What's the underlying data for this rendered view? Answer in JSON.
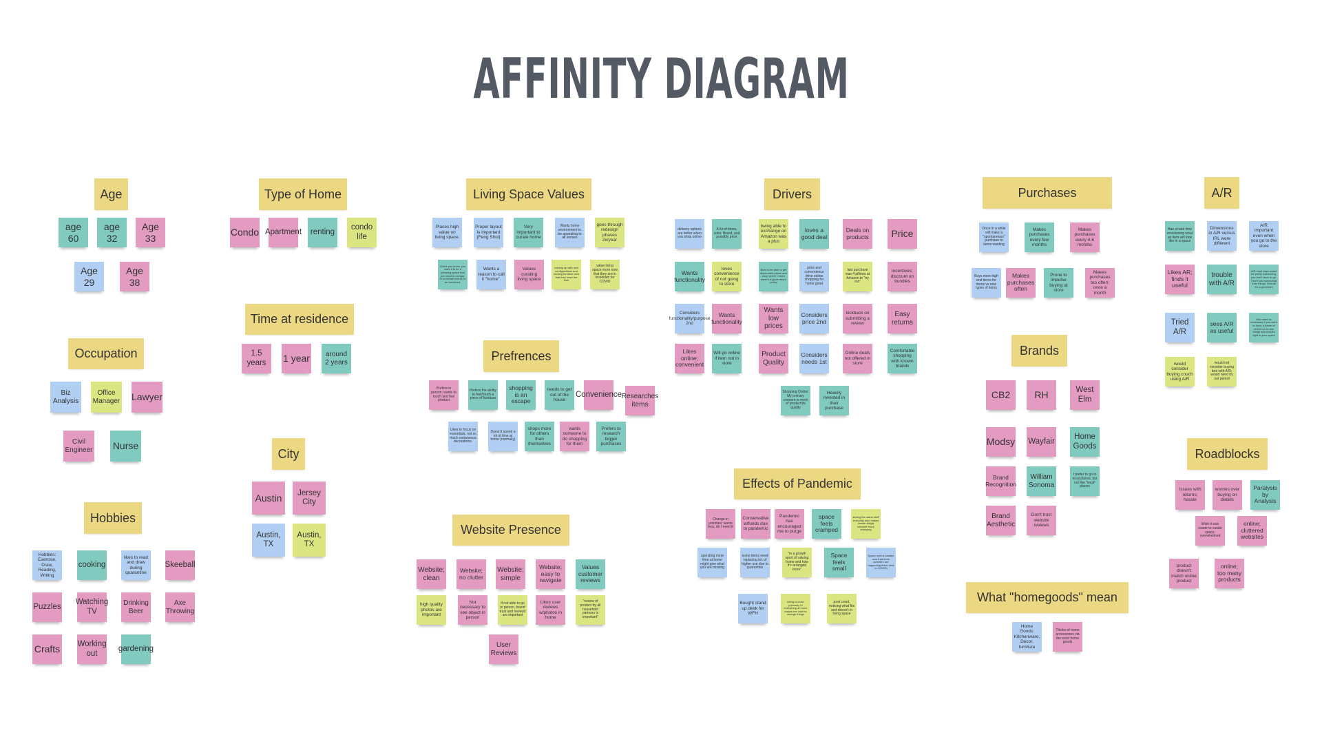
{
  "title": "AFFINITY DIAGRAM",
  "palette": {
    "header": "#ecd782",
    "pink": "#e49bc2",
    "teal": "#80cac0",
    "blue": "#b0cff3",
    "green": "#dbe683",
    "title": "#545a64"
  },
  "groups": [
    {
      "title": "Age",
      "notes": [
        {
          "text": "age 60",
          "color": "teal"
        },
        {
          "text": "age 32",
          "color": "teal"
        },
        {
          "text": "Age 33",
          "color": "pink"
        },
        {
          "text": "Age 29",
          "color": "blue"
        },
        {
          "text": "Age 38",
          "color": "pink"
        }
      ]
    },
    {
      "title": "Type of Home",
      "notes": [
        {
          "text": "Condo",
          "color": "pink"
        },
        {
          "text": "Apartment",
          "color": "pink"
        },
        {
          "text": "renting",
          "color": "teal"
        },
        {
          "text": "condo life",
          "color": "green"
        }
      ]
    },
    {
      "title": "Time at residence",
      "notes": [
        {
          "text": "1.5 years",
          "color": "pink"
        },
        {
          "text": "1 year",
          "color": "pink"
        },
        {
          "text": "around 2 years",
          "color": "teal"
        }
      ]
    },
    {
      "title": "Occupation",
      "notes": [
        {
          "text": "Biz Analysis",
          "color": "blue"
        },
        {
          "text": "Office Manager",
          "color": "green"
        },
        {
          "text": "Lawyer",
          "color": "pink"
        },
        {
          "text": "Civil Engineer",
          "color": "pink"
        },
        {
          "text": "Nurse",
          "color": "teal"
        }
      ]
    },
    {
      "title": "City",
      "notes": [
        {
          "text": "Austin",
          "color": "pink"
        },
        {
          "text": "Jersey City",
          "color": "pink"
        },
        {
          "text": "Austin, TX",
          "color": "blue"
        },
        {
          "text": "Austin, TX",
          "color": "green"
        }
      ]
    },
    {
      "title": "Hobbies",
      "notes": [
        {
          "text": "Hobbies: Exercise, Draw, Reading, Writing",
          "color": "blue"
        },
        {
          "text": "cooking",
          "color": "teal"
        },
        {
          "text": "likes to read and draw during quarantine",
          "color": "blue"
        },
        {
          "text": "Skeeball",
          "color": "pink"
        },
        {
          "text": "Puzzles",
          "color": "pink"
        },
        {
          "text": "Watching TV",
          "color": "pink"
        },
        {
          "text": "Drinking Beer",
          "color": "pink"
        },
        {
          "text": "Axe Throwing",
          "color": "pink"
        },
        {
          "text": "Crafts",
          "color": "pink"
        },
        {
          "text": "Working out",
          "color": "pink"
        },
        {
          "text": "gardening",
          "color": "teal"
        }
      ]
    },
    {
      "title": "Living Space Values",
      "notes": [
        {
          "text": "Places high value on living space.",
          "color": "blue"
        },
        {
          "text": "Proper layout is important (Feng Shui)",
          "color": "blue"
        },
        {
          "text": "Very important to curate home",
          "color": "teal"
        },
        {
          "text": "Wants home environment to be appealing to all senses",
          "color": "blue"
        },
        {
          "text": "goes through redesign phases 2x/year",
          "color": "green"
        },
        {
          "text": "I think you know, you want it to be a pleasing space that you want to occupy. To a certain extent, to be furnished.",
          "color": "teal"
        },
        {
          "text": "Wants a reason to call it \"home\".",
          "color": "blue"
        },
        {
          "text": "Values curating living space",
          "color": "pink"
        },
        {
          "text": "coming up with new configurations and moving furniture now that they have the time",
          "color": "green"
        },
        {
          "text": "value living space more now that they are in lockdown for COVID",
          "color": "green"
        }
      ]
    },
    {
      "title": "Prefrences",
      "notes": [
        {
          "text": "Prefers in person; wants to touch and feel product",
          "color": "pink"
        },
        {
          "text": "Prefers the ability to feel/touch a piece of furniture",
          "color": "teal"
        },
        {
          "text": "shopping is an escape",
          "color": "teal"
        },
        {
          "text": "needs to get out of the house",
          "color": "teal"
        },
        {
          "text": "Convenience",
          "color": "pink"
        },
        {
          "text": "Researches items",
          "color": "pink"
        },
        {
          "text": "Likes to focus on essentials, not so much extraneous decorations.",
          "color": "blue"
        },
        {
          "text": "Doesn't spend a lot of time at home (normally)",
          "color": "blue"
        },
        {
          "text": "shops more for others than themselves",
          "color": "teal"
        },
        {
          "text": "wants someone to do shopping for them",
          "color": "pink"
        },
        {
          "text": "Prefers to research bigger purchases",
          "color": "teal"
        }
      ]
    },
    {
      "title": "Website Presence",
      "notes": [
        {
          "text": "Website; clean",
          "color": "pink"
        },
        {
          "text": "Website; no clutter",
          "color": "pink"
        },
        {
          "text": "Website; simple",
          "color": "pink"
        },
        {
          "text": "Website; easy to navigate",
          "color": "pink"
        },
        {
          "text": "Values customer reviews",
          "color": "teal"
        },
        {
          "text": "high quality photos are important",
          "color": "green"
        },
        {
          "text": "Not necessary to see object in person",
          "color": "pink"
        },
        {
          "text": "If not able to go in person, brand trust and reviews are important",
          "color": "green"
        },
        {
          "text": "Likes user reviews w/photos in home",
          "color": "pink"
        },
        {
          "text": "\"review of product by all household partners is important\"",
          "color": "green"
        },
        {
          "text": "User Reviews",
          "color": "pink"
        }
      ]
    },
    {
      "title": "Drivers",
      "notes": [
        {
          "text": "delivery options are better when you shop online",
          "color": "blue"
        },
        {
          "text": "A lot of times, color, Brand, and possibly price",
          "color": "teal"
        },
        {
          "text": "being able to exchange on Amazon was a plus",
          "color": "green"
        },
        {
          "text": "loves a good deal",
          "color": "teal"
        },
        {
          "text": "Deals on products",
          "color": "pink"
        },
        {
          "text": "Price",
          "color": "pink"
        },
        {
          "text": "Wants functionality",
          "color": "teal"
        },
        {
          "text": "loves convenience of not going to store",
          "color": "green"
        },
        {
          "text": "likes to be able to get discounted prices and shop where I know there's a good return policy",
          "color": "teal"
        },
        {
          "text": "price and convenience drive online shopping for home good",
          "color": "blue"
        },
        {
          "text": "last purchase was 4 pillows at Amazon to \"try out\"",
          "color": "green"
        },
        {
          "text": "incentives; discount on bundles",
          "color": "pink"
        },
        {
          "text": "Considers functionality/purpose 2nd",
          "color": "blue"
        },
        {
          "text": "Wants functionality",
          "color": "pink"
        },
        {
          "text": "Wants low prices",
          "color": "pink"
        },
        {
          "text": "Considers price 2nd",
          "color": "blue"
        },
        {
          "text": "kickback on submitting a review",
          "color": "pink"
        },
        {
          "text": "Easy returns",
          "color": "pink"
        },
        {
          "text": "Likes online; convenient",
          "color": "pink"
        },
        {
          "text": "Will go online if item not in store",
          "color": "teal"
        },
        {
          "text": "Product Quality",
          "color": "pink"
        },
        {
          "text": "Considers needs 1st",
          "color": "blue"
        },
        {
          "text": "Online deals not offered in store",
          "color": "pink"
        },
        {
          "text": "Comfortable shopping with known brands",
          "color": "teal"
        },
        {
          "text": "Shopping Online: My primary concern is more of product/its quality",
          "color": "teal"
        },
        {
          "text": "Heavily invested in their purchase",
          "color": "teal"
        }
      ]
    },
    {
      "title": "Effects of Pandemic",
      "notes": [
        {
          "text": "Change in priorities; wants less; do I need it",
          "color": "pink"
        },
        {
          "text": "Conservative w/funds due to pandemic",
          "color": "pink"
        },
        {
          "text": "Pandemic has encouraged me to purge",
          "color": "pink"
        },
        {
          "text": "space feels cramped",
          "color": "teal"
        },
        {
          "text": "seeing the same stuff everyday also makes certain things become more annoying",
          "color": "green"
        },
        {
          "text": "spending more time at home might give what you are missing",
          "color": "blue"
        },
        {
          "text": "some items need replacing b/c of higher use due to quarantine",
          "color": "blue"
        },
        {
          "text": "\"In a growth spurt of valuing home and how it's arranged more\"",
          "color": "green"
        },
        {
          "text": "Space feels small",
          "color": "teal"
        },
        {
          "text": "Space seems smaller now that more activities are happening there (due to COVID)",
          "color": "blue"
        },
        {
          "text": "Bought stand up desk for WFH",
          "color": "blue"
        },
        {
          "text": "being in close proximity to everything at home makes me want to change things",
          "color": "green"
        },
        {
          "text": "post covid, noticing what fits and doesn't in living space",
          "color": "green"
        }
      ]
    },
    {
      "title": "Purchases",
      "notes": [
        {
          "text": "Once in a while will make a \"spontaneous\" purchase to items wanting",
          "color": "blue"
        },
        {
          "text": "Makes purchases every few months",
          "color": "teal"
        },
        {
          "text": "Makes purchases every 4-6 months",
          "color": "pink"
        },
        {
          "text": "Buys more high end items for items vs new types of items",
          "color": "blue"
        },
        {
          "text": "Makes purchases often",
          "color": "pink"
        },
        {
          "text": "Prone to impulse buying at store",
          "color": "teal"
        },
        {
          "text": "Makes purchases too often; once a month",
          "color": "pink"
        }
      ]
    },
    {
      "title": "Brands",
      "notes": [
        {
          "text": "CB2",
          "color": "pink"
        },
        {
          "text": "RH",
          "color": "pink"
        },
        {
          "text": "West Elm",
          "color": "pink"
        },
        {
          "text": "Modsy",
          "color": "pink"
        },
        {
          "text": "Wayfair",
          "color": "pink"
        },
        {
          "text": "Home Goods",
          "color": "teal"
        },
        {
          "text": "Brand Recognition",
          "color": "pink"
        },
        {
          "text": "William Sonoma",
          "color": "teal"
        },
        {
          "text": "I prefer to go to local places, but not like \"local\" places",
          "color": "teal"
        },
        {
          "text": "Brand Aesthetic",
          "color": "pink"
        },
        {
          "text": "Don't trust website reviews",
          "color": "pink"
        }
      ]
    },
    {
      "title": "What \"homegoods\" mean",
      "notes": [
        {
          "text": "Home Goods: Kitchenware, Decor, furniture",
          "color": "blue"
        },
        {
          "text": "Thinks of home accessories via the word home goods",
          "color": "pink"
        }
      ]
    },
    {
      "title": "A/R",
      "notes": [
        {
          "text": "Has a hard time envisioning what an item will look like in a space",
          "color": "teal"
        },
        {
          "text": "Dimensions in A/R versus IRL were different",
          "color": "blue"
        },
        {
          "text": "A/R important even when you go to the store",
          "color": "blue"
        },
        {
          "text": "Likes AR; finds it useful",
          "color": "pink"
        },
        {
          "text": "trouble with A/R",
          "color": "teal"
        },
        {
          "text": "A/R most days would be pretty convincing, you don't have to go. I don't just somewhat trust things. Overall it's a great tool",
          "color": "teal"
        },
        {
          "text": "Tried A/R",
          "color": "blue"
        },
        {
          "text": "sees A/R as useful",
          "color": "teal"
        },
        {
          "text": "Has used as necessary if you want to have a frame of reference to see things and it looks right in your space",
          "color": "teal"
        },
        {
          "text": "would consider buying couch using A/R",
          "color": "green"
        },
        {
          "text": "would not consider buying bed with A/R; would need try out period",
          "color": "green"
        }
      ]
    },
    {
      "title": "Roadblocks",
      "notes": [
        {
          "text": "Issues with returns; hassle",
          "color": "pink"
        },
        {
          "text": "worries over buying on details",
          "color": "pink"
        },
        {
          "text": "Paralysis by Analysis",
          "color": "teal"
        },
        {
          "text": "Wish it was easier to curate space; overwhelmed",
          "color": "pink"
        },
        {
          "text": "online; cluttered websites",
          "color": "pink"
        },
        {
          "text": "product doesn't match online product",
          "color": "pink"
        },
        {
          "text": "online; too many products",
          "color": "pink"
        }
      ]
    }
  ]
}
